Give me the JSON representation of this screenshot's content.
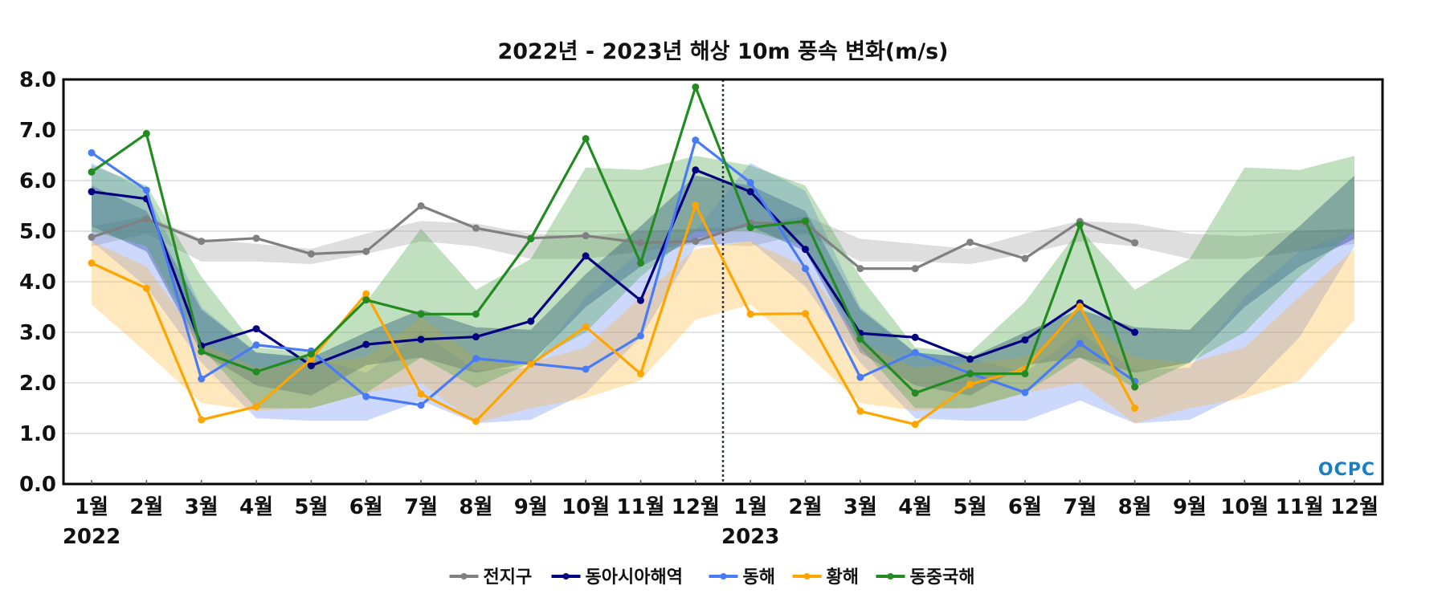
{
  "chart_data": {
    "type": "line",
    "title": "2022년 - 2023년 해상 10m 풍속 변화(m/s)",
    "xlabel": "",
    "ylabel": "",
    "ylim": [
      0,
      8
    ],
    "y_ticks": [
      "0.0",
      "1.0",
      "2.0",
      "3.0",
      "4.0",
      "5.0",
      "6.0",
      "7.0",
      "8.0"
    ],
    "x_tick_labels": [
      "1월",
      "2월",
      "3월",
      "4월",
      "5월",
      "6월",
      "7월",
      "8월",
      "9월",
      "10월",
      "11월",
      "12월",
      "1월",
      "2월",
      "3월",
      "4월",
      "5월",
      "6월",
      "7월",
      "8월",
      "9월",
      "10월",
      "11월",
      "12월"
    ],
    "year_labels": [
      "2022",
      "2023"
    ],
    "grid": true,
    "legend_position": "bottom-center",
    "divider": "between 2022-12 and 2023-01 (dotted)",
    "logo": "OCPC",
    "series": [
      {
        "name": "전지구",
        "color": "#808080",
        "band_color": "rgba(160,160,160,0.35)",
        "values": [
          4.88,
          5.24,
          4.8,
          4.86,
          4.55,
          4.6,
          5.5,
          5.06,
          4.86,
          4.91,
          4.77,
          4.8,
          5.16,
          5.16,
          4.26,
          4.26,
          4.78,
          4.46,
          5.19,
          4.77,
          null,
          null,
          null,
          null
        ],
        "band_low": [
          4.7,
          4.95,
          4.4,
          4.4,
          4.35,
          4.55,
          4.8,
          4.7,
          4.45,
          4.45,
          4.6,
          4.75
        ],
        "band_high": [
          5.1,
          5.3,
          4.85,
          4.75,
          4.65,
          4.95,
          5.2,
          5.15,
          4.95,
          4.9,
          5.0,
          5.05
        ]
      },
      {
        "name": "동아시아해역",
        "color": "#000080",
        "band_color": "rgba(20,40,130,0.38)",
        "values": [
          5.78,
          5.64,
          2.73,
          3.07,
          2.34,
          2.76,
          2.86,
          2.91,
          3.22,
          4.51,
          3.63,
          6.21,
          5.78,
          4.64,
          2.98,
          2.9,
          2.47,
          2.85,
          3.58,
          3.0,
          null,
          null,
          null,
          null
        ],
        "band_low": [
          5.1,
          4.6,
          2.6,
          1.95,
          1.75,
          2.35,
          2.5,
          2.2,
          2.4,
          3.5,
          4.3,
          4.85
        ],
        "band_high": [
          5.9,
          5.4,
          3.45,
          2.6,
          2.5,
          3.0,
          3.45,
          3.1,
          3.05,
          4.15,
          5.1,
          6.1
        ]
      },
      {
        "name": "동해",
        "color": "#4a7bf7",
        "band_color": "rgba(90,130,245,0.3)",
        "values": [
          6.55,
          5.81,
          2.08,
          2.75,
          2.63,
          1.73,
          1.56,
          2.48,
          2.38,
          2.27,
          2.93,
          6.8,
          5.96,
          4.26,
          2.11,
          2.6,
          2.19,
          1.81,
          2.78,
          2.03,
          null,
          null,
          null,
          null
        ],
        "band_low": [
          4.8,
          3.9,
          2.4,
          1.3,
          1.25,
          1.25,
          1.65,
          1.2,
          1.27,
          1.8,
          2.9,
          4.7
        ],
        "band_high": [
          6.35,
          5.8,
          3.5,
          2.6,
          2.5,
          2.2,
          3.0,
          2.25,
          2.3,
          3.7,
          4.6,
          5.0
        ]
      },
      {
        "name": "황해",
        "color": "#ffa500",
        "band_color": "rgba(255,175,40,0.3)",
        "values": [
          4.37,
          3.87,
          1.27,
          1.53,
          2.47,
          3.76,
          1.78,
          1.24,
          2.37,
          3.11,
          2.18,
          5.51,
          3.36,
          3.37,
          1.44,
          1.18,
          1.97,
          2.28,
          3.51,
          1.5,
          null,
          null,
          null,
          null
        ],
        "band_low": [
          3.55,
          2.6,
          1.6,
          1.45,
          1.5,
          1.8,
          2.0,
          1.2,
          1.5,
          1.7,
          2.05,
          3.25
        ],
        "band_high": [
          4.8,
          4.3,
          2.8,
          2.3,
          2.4,
          2.5,
          3.3,
          2.5,
          2.4,
          2.7,
          3.7,
          4.65
        ]
      },
      {
        "name": "동중국해",
        "color": "#228b22",
        "band_color": "rgba(60,160,60,0.32)",
        "values": [
          6.17,
          6.93,
          2.62,
          2.22,
          2.57,
          3.64,
          3.36,
          3.36,
          4.85,
          6.83,
          4.37,
          7.85,
          5.07,
          5.2,
          2.87,
          1.8,
          2.18,
          2.18,
          5.13,
          1.92,
          null,
          null,
          null,
          null
        ],
        "band_low": [
          5.0,
          4.7,
          2.7,
          1.5,
          1.5,
          1.8,
          2.5,
          1.9,
          2.4,
          3.0,
          4.1,
          5.0
        ],
        "band_high": [
          6.3,
          5.9,
          4.1,
          2.7,
          2.6,
          3.6,
          5.05,
          3.84,
          4.45,
          6.26,
          6.21,
          6.49
        ]
      }
    ]
  }
}
